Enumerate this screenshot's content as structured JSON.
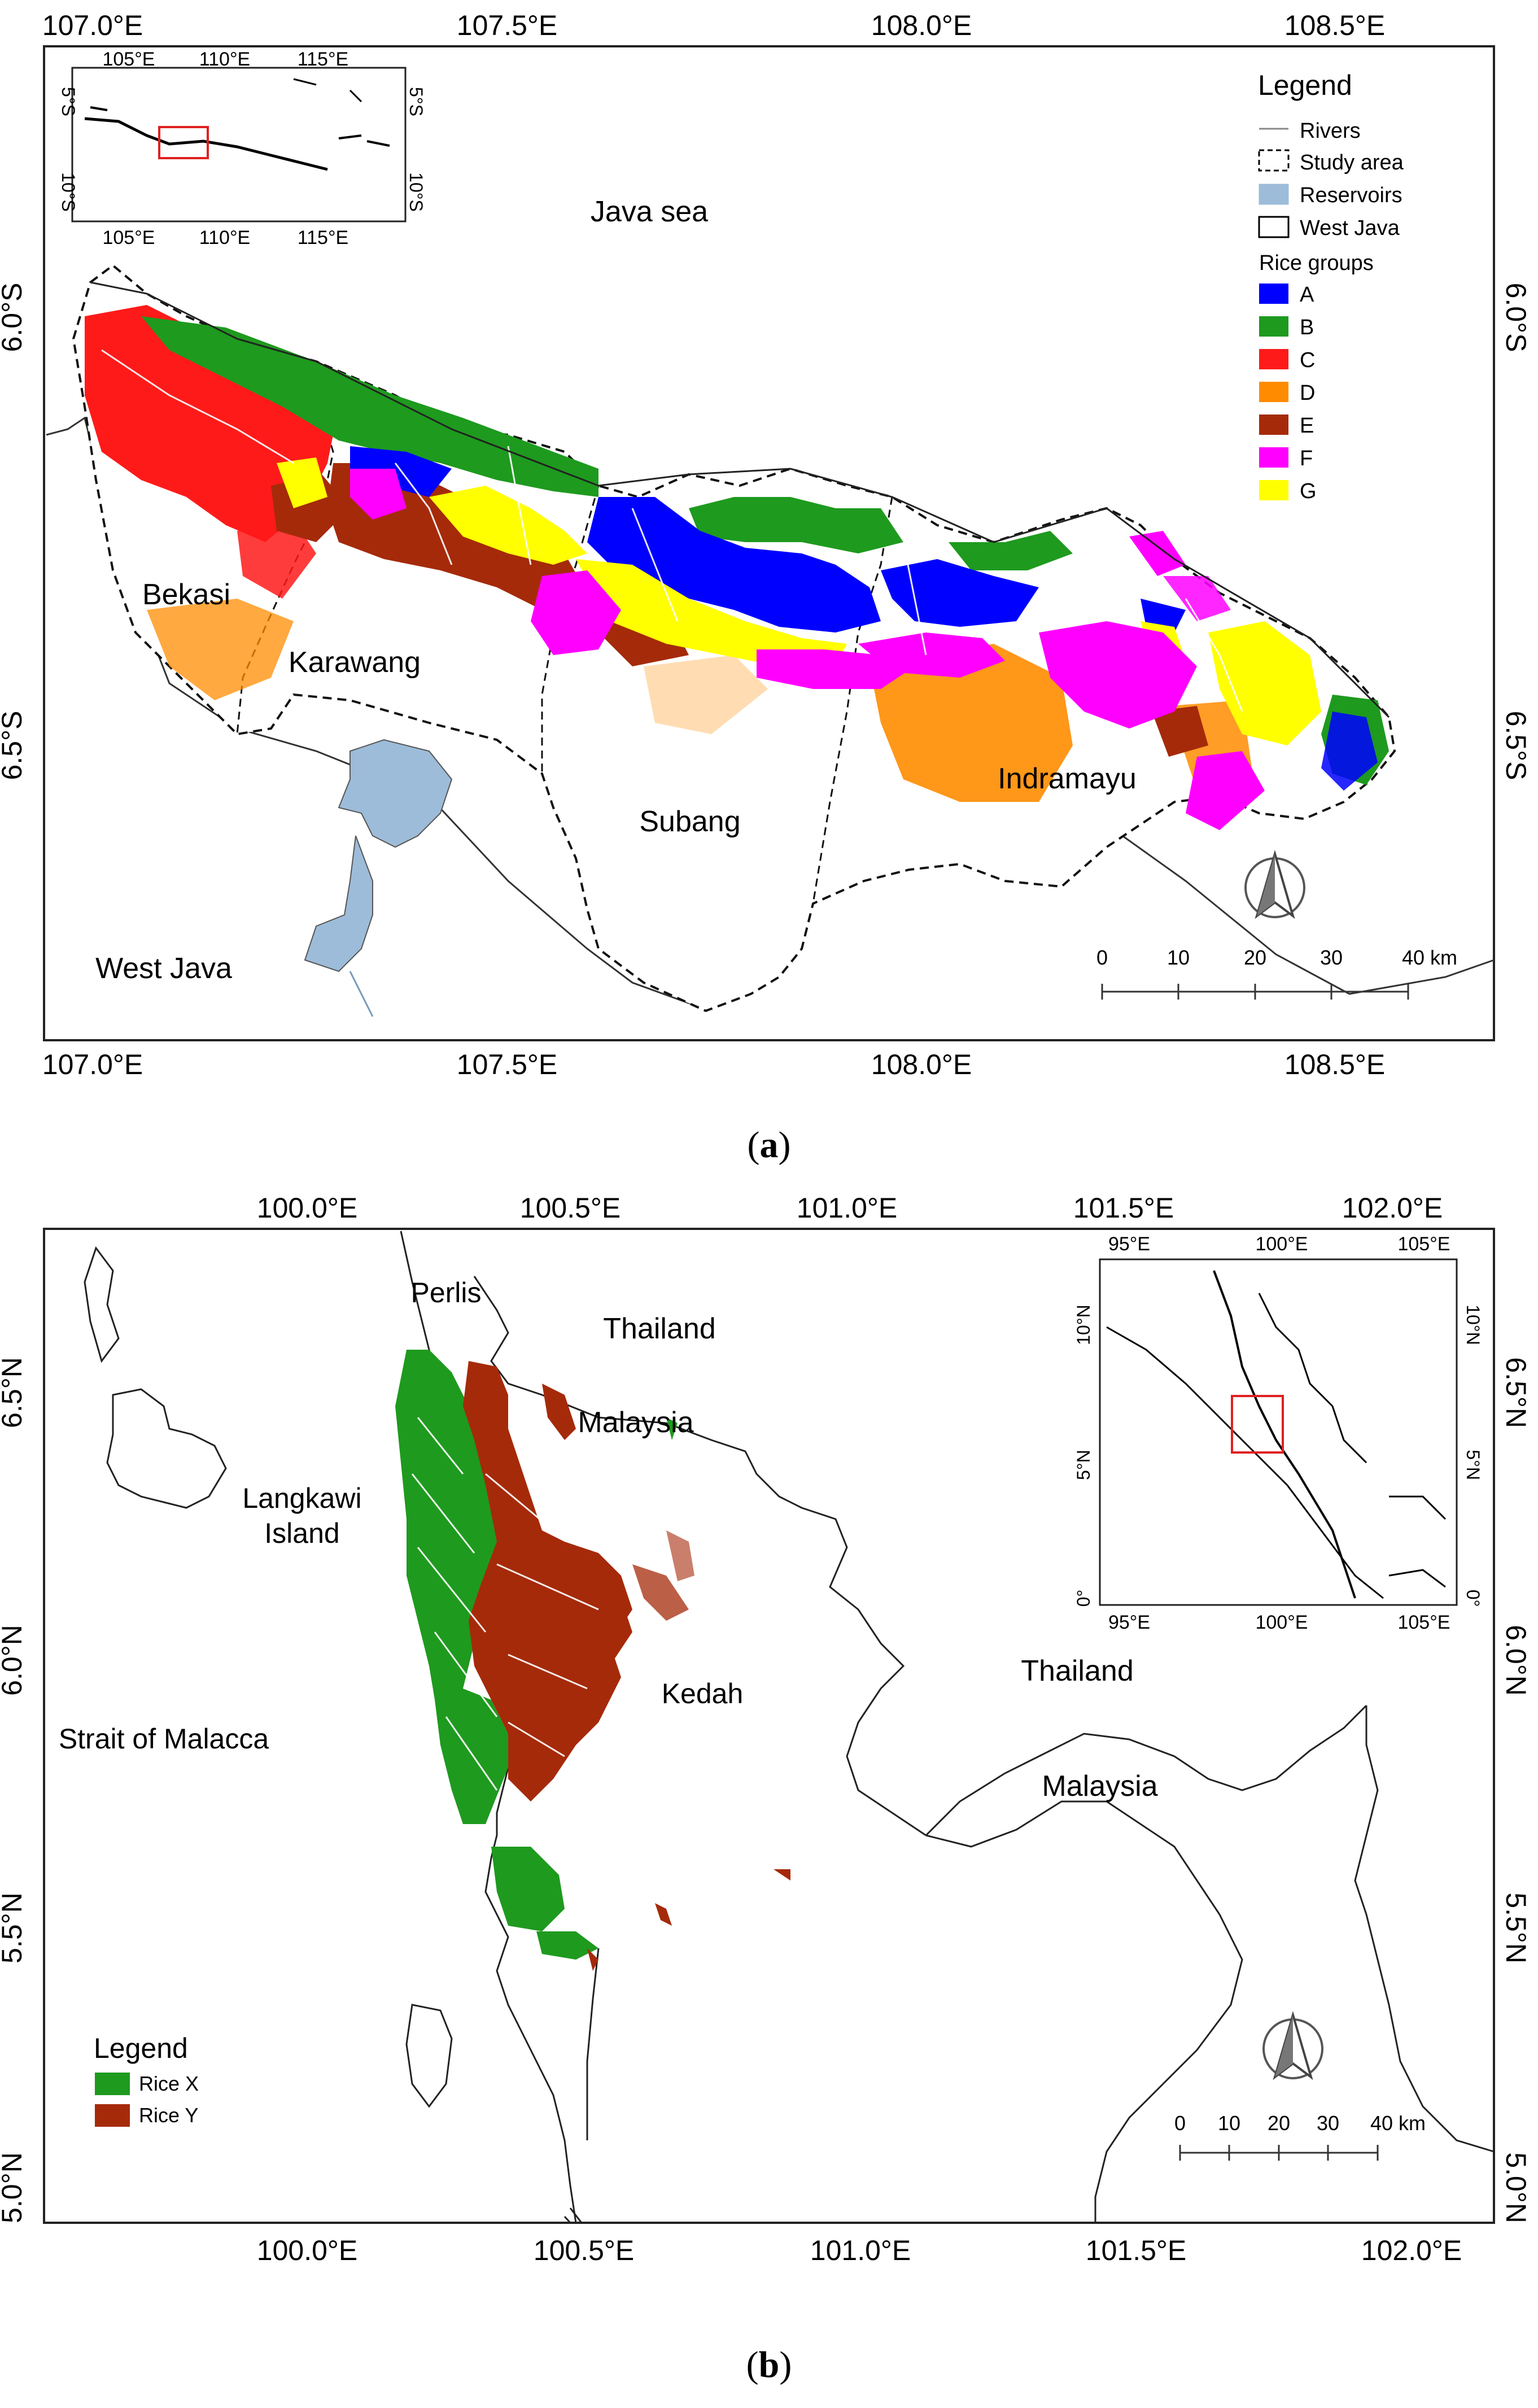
{
  "panel_a": {
    "top_ticks": [
      "107.0°E",
      "107.5°E",
      "108.0°E",
      "108.5°E"
    ],
    "bottom_ticks": [
      "107.0°E",
      "107.5°E",
      "108.0°E",
      "108.5°E"
    ],
    "left_ticks": [
      "6.0°S",
      "6.5°S"
    ],
    "right_ticks": [
      "6.0°S",
      "6.5°S"
    ],
    "labels": {
      "sea": "Java sea",
      "bekasi": "Bekasi",
      "karawang": "Karawang",
      "subang": "Subang",
      "indramayu": "Indramayu",
      "west_java": "West Java"
    },
    "legend": {
      "title": "Legend",
      "items": [
        "Rivers",
        "Study area",
        "Reservoirs",
        "West Java"
      ],
      "rice_title": "Rice groups",
      "groups": [
        {
          "label": "A",
          "color": "#0000ff"
        },
        {
          "label": "B",
          "color": "#1e9a1e"
        },
        {
          "label": "C",
          "color": "#ff1a1a"
        },
        {
          "label": "D",
          "color": "#ff8c00"
        },
        {
          "label": "E",
          "color": "#a52a0a"
        },
        {
          "label": "F",
          "color": "#ff00ff"
        },
        {
          "label": "G",
          "color": "#ffff00"
        }
      ]
    },
    "inset": {
      "top_ticks": [
        "105°E",
        "110°E",
        "115°E"
      ],
      "bottom_ticks": [
        "105°E",
        "110°E",
        "115°E"
      ],
      "left_ticks": [
        "5°S",
        "10°S"
      ],
      "right_ticks": [
        "5°S",
        "10°S"
      ]
    },
    "scale": {
      "ticks": [
        "0",
        "10",
        "20",
        "30",
        "40 km"
      ]
    },
    "caption": "a"
  },
  "panel_b": {
    "top_ticks": [
      "100.0°E",
      "100.5°E",
      "101.0°E",
      "101.5°E",
      "102.0°E"
    ],
    "bottom_ticks": [
      "100.0°E",
      "100.5°E",
      "101.0°E",
      "101.5°E",
      "102.0°E"
    ],
    "left_ticks": [
      "6.5°N",
      "6.0°N",
      "5.5°N",
      "5.0°N"
    ],
    "right_ticks": [
      "6.5°N",
      "6.0°N",
      "5.5°N",
      "5.0°N"
    ],
    "labels": {
      "perlis": "Perlis",
      "thailand1": "Thailand",
      "malaysia1": "Malaysia",
      "langkawi1": "Langkawi",
      "langkawi2": "Island",
      "kedah": "Kedah",
      "thailand2": "Thailand",
      "malaysia2": "Malaysia",
      "strait": "Strait of Malacca"
    },
    "legend": {
      "title": "Legend",
      "items": [
        {
          "label": "Rice X",
          "color": "#1e9a1e"
        },
        {
          "label": "Rice Y",
          "color": "#a52a0a"
        }
      ]
    },
    "inset": {
      "top_ticks": [
        "95°E",
        "100°E",
        "105°E"
      ],
      "bottom_ticks": [
        "95°E",
        "100°E",
        "105°E"
      ],
      "left_ticks": [
        "10°N",
        "5°N",
        "0°"
      ],
      "right_ticks": [
        "10°N",
        "5°N",
        "0°"
      ]
    },
    "scale": {
      "ticks": [
        "0",
        "10",
        "20",
        "30",
        "40 km"
      ]
    },
    "caption": "b"
  },
  "colors": {
    "reservoir": "#9dbcd9",
    "frame": "#222222",
    "sea_bg": "#ffffff"
  }
}
